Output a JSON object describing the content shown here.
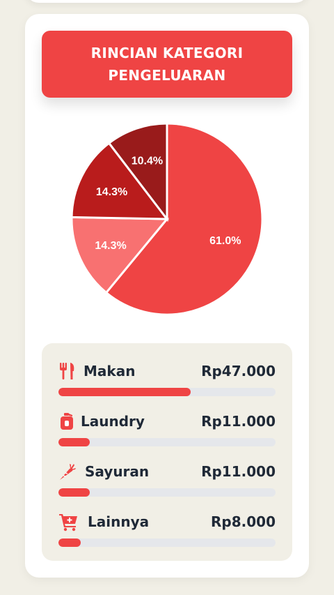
{
  "title": "RINCIAN KATEGORI PENGELUARAN",
  "colors": {
    "accent": "#ef4444",
    "track": "#e5e7eb",
    "panel": "#f1efe6"
  },
  "chart_data": {
    "type": "pie",
    "slices": [
      {
        "label": "Makan",
        "value": 61.0,
        "display": "61.0%",
        "color": "#ef4444"
      },
      {
        "label": "Laundry",
        "value": 14.3,
        "display": "14.3%",
        "color": "#f87171"
      },
      {
        "label": "Sayuran",
        "value": 14.3,
        "display": "14.3%",
        "color": "#b91c1c"
      },
      {
        "label": "Lainnya",
        "value": 10.4,
        "display": "10.4%",
        "color": "#991b1b"
      }
    ]
  },
  "categories": [
    {
      "name": "Makan",
      "amount": "Rp47.000",
      "icon": "utensils-icon",
      "progress": 0.61
    },
    {
      "name": "Laundry",
      "amount": "Rp11.000",
      "icon": "detergent-bottle-icon",
      "progress": 0.143
    },
    {
      "name": "Sayuran",
      "amount": "Rp11.000",
      "icon": "carrot-icon",
      "progress": 0.143
    },
    {
      "name": "Lainnya",
      "amount": "Rp8.000",
      "icon": "cart-plus-icon",
      "progress": 0.104
    }
  ]
}
